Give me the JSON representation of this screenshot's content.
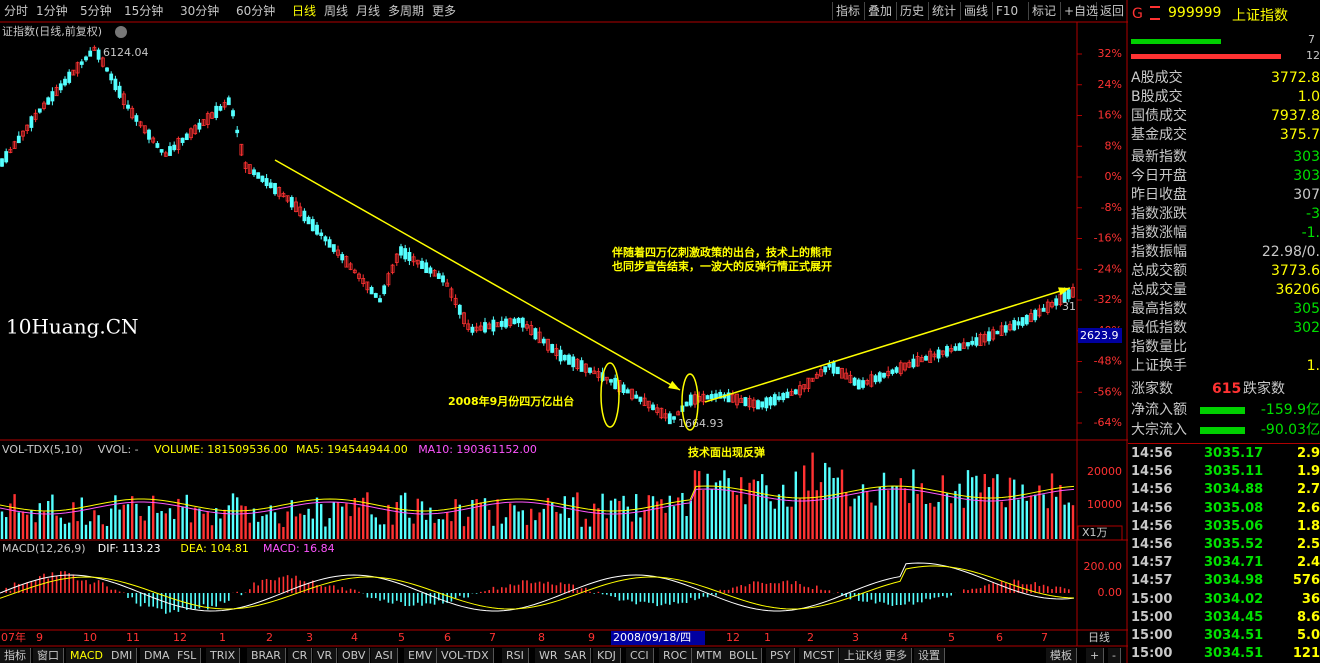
{
  "toolbar": {
    "periods": [
      "分时",
      "1分钟",
      "5分钟",
      "15分钟",
      "30分钟",
      "60分钟",
      "日线",
      "周线",
      "月线",
      "多周期",
      "更多"
    ],
    "selected_period": 6,
    "tools": [
      "指标",
      "叠加",
      "历史",
      "统计",
      "画线",
      "F10",
      "标记",
      "+自选",
      "返回"
    ]
  },
  "chart": {
    "title": "证指数(日线,前复权)",
    "high_label": "6124.04",
    "low_label": "1664.93",
    "current_label": "2623.9",
    "edge_label": "31",
    "pct_ticks": [
      "32%",
      "24%",
      "16%",
      "8%",
      "0%",
      "-8%",
      "-16%",
      "-24%",
      "-32%",
      "-40%",
      "-48%",
      "-56%",
      "-64%"
    ],
    "watermark": "10Huang.CN",
    "annotations": {
      "policy": [
        "伴随着四万亿刺激政策的出台，技术上的熊市",
        "也同步宣告结束，一波大的反弹行情正式展开"
      ],
      "september": "2008年9月份四万亿出台",
      "rebound": "技术面出现反弹"
    }
  },
  "volume": {
    "labels": [
      "VOL-TDX(5,10)",
      "VVOL: -",
      "VOLUME: 181509536.00",
      "MA5: 194544944.00",
      "MA10: 190361152.00"
    ],
    "colors": [
      "#c8c8c8",
      "#c8c8c8",
      "#ffff00",
      "#ffff00",
      "#ff55ff"
    ],
    "ticks": [
      "20000",
      "10000"
    ],
    "unit": "X1万"
  },
  "macd": {
    "labels": [
      "MACD(12,26,9)",
      "DIF: 113.23",
      "DEA: 104.81",
      "MACD: 16.84"
    ],
    "colors": [
      "#c8c8c8",
      "#ffffff",
      "#ffff00",
      "#ff55ff"
    ],
    "ticks": [
      "200.00",
      "0.00"
    ]
  },
  "x_axis": {
    "labels": [
      "07年",
      "9",
      "10",
      "11",
      "12",
      "1",
      "2",
      "3",
      "4",
      "5",
      "6",
      "7",
      "8",
      "9",
      "2008/09/18/四",
      "12",
      "1",
      "2",
      "3",
      "4",
      "5",
      "6",
      "7"
    ],
    "period": "日线"
  },
  "bottom_tabs": [
    "指标",
    "窗口",
    "MACD",
    "DMI",
    "DMA",
    "FSL",
    "TRIX",
    "BRAR",
    "CR",
    "VR",
    "OBV",
    "ASI",
    "EMV",
    "VOL-TDX",
    "RSI",
    "WR",
    "SAR",
    "KDJ",
    "CCI",
    "ROC",
    "MTM",
    "BOLL",
    "PSY",
    "MCST",
    "上证K线",
    "更多",
    "设置"
  ],
  "bottom_right": [
    "模板",
    "+",
    "-"
  ],
  "quote": {
    "flag": "G",
    "code": "999999",
    "name": "上证指数",
    "bar_labels": [
      "7",
      "12"
    ],
    "rows": [
      {
        "label": "A股成交",
        "value": "3772.8",
        "color": "#ffff00"
      },
      {
        "label": "B股成交",
        "value": "1.0",
        "color": "#ffff00"
      },
      {
        "label": "国债成交",
        "value": "7937.8",
        "color": "#ffff00"
      },
      {
        "label": "基金成交",
        "value": "375.7",
        "color": "#ffff00"
      },
      {
        "label": "最新指数",
        "value": "303",
        "color": "#00e000"
      },
      {
        "label": "今日开盘",
        "value": "303",
        "color": "#00e000"
      },
      {
        "label": "昨日收盘",
        "value": "307",
        "color": "#c8c8c8"
      },
      {
        "label": "指数涨跌",
        "value": "-3",
        "color": "#00e000"
      },
      {
        "label": "指数涨幅",
        "value": "-1.",
        "color": "#00e000"
      },
      {
        "label": "指数振幅",
        "value": "22.98/0.",
        "color": "#c8c8c8"
      },
      {
        "label": "总成交额",
        "value": "3773.6",
        "color": "#ffff00"
      },
      {
        "label": "总成交量",
        "value": "36206",
        "color": "#ffff00"
      },
      {
        "label": "最高指数",
        "value": "305",
        "color": "#00e000"
      },
      {
        "label": "最低指数",
        "value": "302",
        "color": "#00e000"
      },
      {
        "label": "指数量比",
        "value": "",
        "color": "#c8c8c8"
      },
      {
        "label": "上证换手",
        "value": "1.",
        "color": "#ffff00"
      }
    ],
    "breadth": {
      "up_label": "涨家数",
      "up_value": "615",
      "down_label": "跌家数"
    },
    "flows": [
      {
        "label": "净流入额",
        "value": "-159.9亿"
      },
      {
        "label": "大宗流入",
        "value": "-90.03亿"
      }
    ],
    "ticks": [
      [
        "14:56",
        "3035.17",
        "2.9"
      ],
      [
        "14:56",
        "3035.11",
        "1.9"
      ],
      [
        "14:56",
        "3034.88",
        "2.7"
      ],
      [
        "14:56",
        "3035.08",
        "2.6"
      ],
      [
        "14:56",
        "3035.06",
        "1.8"
      ],
      [
        "14:56",
        "3035.52",
        "2.5"
      ],
      [
        "14:57",
        "3034.71",
        "2.4"
      ],
      [
        "14:57",
        "3034.98",
        "576"
      ],
      [
        "15:00",
        "3034.02",
        "36"
      ],
      [
        "15:00",
        "3034.45",
        "8.6"
      ],
      [
        "15:00",
        "3034.51",
        "5.0"
      ],
      [
        "15:00",
        "3034.51",
        "121"
      ]
    ]
  }
}
